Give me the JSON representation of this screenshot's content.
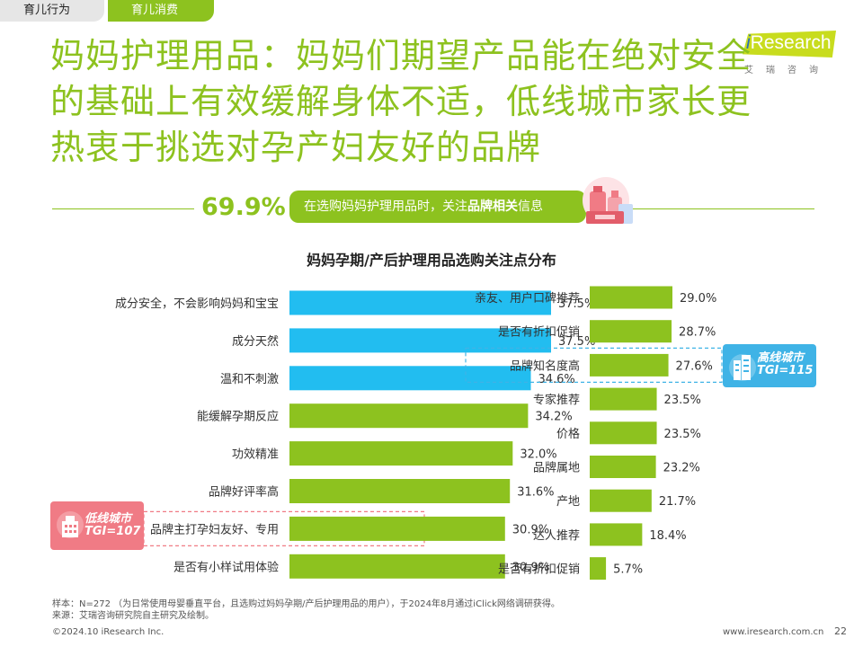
{
  "tabs": [
    {
      "label": "育儿行为",
      "active": false
    },
    {
      "label": "育儿消费",
      "active": true
    }
  ],
  "logo": {
    "text_i": "i",
    "text_rest": "Research",
    "cn": "艾瑞咨询"
  },
  "headline": "妈妈护理用品：妈妈们期望产品能在绝对安全的基础上有效缓解身体不适，低线城市家长更热衷于挑选对孕产妇友好的品牌",
  "stat": {
    "value": "69.9%",
    "text_before": "在选购妈妈护理用品时，关注",
    "text_bold": "品牌相关",
    "text_after": "信息"
  },
  "colors": {
    "green": "#8dc21f",
    "blue": "#22bdf0",
    "pink": "#f07b85",
    "light_blue": "#3fb3e6"
  },
  "chart_data": {
    "type": "bar",
    "orientation": "horizontal",
    "title": "妈妈孕期/产后护理用品选购关注点分布",
    "panels": [
      {
        "categories": [
          "成分安全，不会影响妈妈和宝宝",
          "成分天然",
          "温和不刺激",
          "能缓解孕期反应",
          "功效精准",
          "品牌好评率高",
          "品牌主打孕妇友好、专用",
          "是否有小样试用体验"
        ],
        "values": [
          37.5,
          37.5,
          34.6,
          34.2,
          32.0,
          31.6,
          30.9,
          30.9
        ],
        "labels": [
          "37.5%",
          "37.5%",
          "34.6%",
          "34.2%",
          "32.0%",
          "31.6%",
          "30.9%",
          "30.9%"
        ],
        "bar_colors": [
          "#22bdf0",
          "#22bdf0",
          "#22bdf0",
          "#8dc21f",
          "#8dc21f",
          "#8dc21f",
          "#8dc21f",
          "#8dc21f"
        ],
        "highlight_index": 6
      },
      {
        "categories": [
          "亲友、用户口碑推荐",
          "是否有折扣促销",
          "品牌知名度高",
          "专家推荐",
          "价格",
          "品牌属地",
          "产地",
          "达人推荐",
          "是否有折扣促销"
        ],
        "values": [
          29.0,
          28.7,
          27.6,
          23.5,
          23.5,
          23.2,
          21.7,
          18.4,
          5.7
        ],
        "labels": [
          "29.0%",
          "28.7%",
          "27.6%",
          "23.5%",
          "23.5%",
          "23.2%",
          "21.7%",
          "18.4%",
          "5.7%"
        ],
        "bar_colors": [
          "#8dc21f",
          "#8dc21f",
          "#8dc21f",
          "#8dc21f",
          "#8dc21f",
          "#8dc21f",
          "#8dc21f",
          "#8dc21f",
          "#8dc21f"
        ],
        "highlight_index": 2
      }
    ]
  },
  "tgi_low": {
    "line1": "低线城市",
    "line2": "TGI=107"
  },
  "tgi_high": {
    "line1": "高线城市",
    "line2": "TGI=115"
  },
  "footnote": {
    "line1": "样本：N=272 （为日常使用母婴垂直平台，且选购过妈妈孕期/产后护理用品的用户），于2024年8月通过iClick网络调研获得。",
    "line2": "来源：艾瑞咨询研究院自主研究及绘制。"
  },
  "footer": {
    "copyright": "©2024.10 iResearch Inc.",
    "site": "www.iresearch.com.cn",
    "page": "22"
  }
}
